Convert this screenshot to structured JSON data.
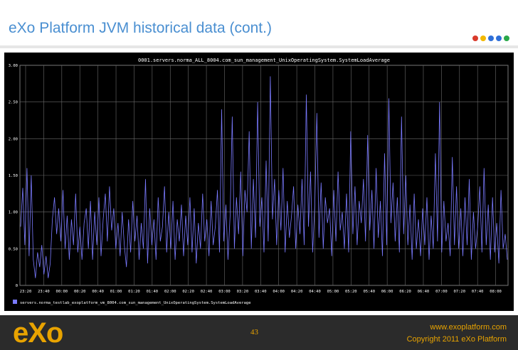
{
  "slide": {
    "title": "eXo Platform JVM historical data (cont.)",
    "dots": [
      "#d93a2b",
      "#f2b800",
      "#2f6fd8",
      "#2f6fd8",
      "#2aa84a"
    ]
  },
  "footer": {
    "logo": "eXo",
    "page_number": "43",
    "url": "www.exoplatform.com",
    "copyright": "Copyright 2011 eXo Platform"
  },
  "chart_data": {
    "type": "line",
    "title": "0001.servers.norma_ALL_8004.com_sun_management_UnixOperatingSystem.SystemLoadAverage",
    "xlabel": "",
    "ylabel": "",
    "ylim": [
      0,
      3.0
    ],
    "yticks": [
      "3.00",
      "2.50",
      "2.00",
      "1.50",
      "1.00",
      "0.50",
      "0"
    ],
    "xticks": [
      "23:20",
      "23:40",
      "00:00",
      "00:20",
      "00:40",
      "01:00",
      "01:20",
      "01:40",
      "02:00",
      "02:20",
      "02:40",
      "03:00",
      "03:20",
      "03:40",
      "04:00",
      "04:20",
      "04:40",
      "05:00",
      "05:20",
      "05:40",
      "06:00",
      "06:20",
      "06:40",
      "07:00",
      "07:20",
      "07:40",
      "08:00"
    ],
    "grid": true,
    "legend_position": "bottom-left",
    "series": [
      {
        "name": "servers.norma_testlab_exoplatform_vm_8004.com_sun_management_UnixOperatingSystem.SystemLoadAverage",
        "color": "#7a7aff",
        "values": [
          0.8,
          1.33,
          0.55,
          1.6,
          0.4,
          1.5,
          0.35,
          0.1,
          0.45,
          0.25,
          0.55,
          0.15,
          0.4,
          0.1,
          0.3,
          0.9,
          1.2,
          0.7,
          1.05,
          0.6,
          1.3,
          0.5,
          0.95,
          0.35,
          0.9,
          0.55,
          1.25,
          0.45,
          0.8,
          0.35,
          0.85,
          1.05,
          0.5,
          1.15,
          0.35,
          1.0,
          0.55,
          1.2,
          0.4,
          0.9,
          1.25,
          0.6,
          1.35,
          0.75,
          1.05,
          0.5,
          0.85,
          0.4,
          1.0,
          0.55,
          0.25,
          0.9,
          0.45,
          1.15,
          0.6,
          0.95,
          0.35,
          0.85,
          0.5,
          1.45,
          0.3,
          1.05,
          0.55,
          0.9,
          0.35,
          1.2,
          0.6,
          0.8,
          1.35,
          0.45,
          1.0,
          0.5,
          1.15,
          0.35,
          0.9,
          0.6,
          1.1,
          0.4,
          0.95,
          0.55,
          1.2,
          0.45,
          1.05,
          0.3,
          0.85,
          0.5,
          1.25,
          0.6,
          0.9,
          0.4,
          1.15,
          0.55,
          0.8,
          1.3,
          0.45,
          2.4,
          0.6,
          1.1,
          0.35,
          0.95,
          2.3,
          0.5,
          1.2,
          0.7,
          1.55,
          0.4,
          1.3,
          1.0,
          2.1,
          0.5,
          1.45,
          0.65,
          2.5,
          0.8,
          1.2,
          0.45,
          1.7,
          0.6,
          2.85,
          0.9,
          1.45,
          0.55,
          1.3,
          0.75,
          1.6,
          0.45,
          1.15,
          0.65,
          0.95,
          1.35,
          0.5,
          1.1,
          0.7,
          1.45,
          0.55,
          2.6,
          0.8,
          1.55,
          0.45,
          1.1,
          2.35,
          0.65,
          1.4,
          0.5,
          1.2,
          0.85,
          1.05,
          0.4,
          1.3,
          0.6,
          1.55,
          0.75,
          1.0,
          0.5,
          1.25,
          0.45,
          2.1,
          0.7,
          1.35,
          0.55,
          1.15,
          0.85,
          1.45,
          0.6,
          2.05,
          0.75,
          1.3,
          0.5,
          1.6,
          0.65,
          1.15,
          0.4,
          1.8,
          0.55,
          2.55,
          0.85,
          1.4,
          0.6,
          1.2,
          0.45,
          2.3,
          0.7,
          1.5,
          0.55,
          1.1,
          0.35,
          1.25,
          0.5,
          0.9,
          0.4,
          1.05,
          0.55,
          1.2,
          0.35,
          0.95,
          0.5,
          1.8,
          0.6,
          2.5,
          0.45,
          1.15,
          0.6,
          0.85,
          0.4,
          1.75,
          0.55,
          1.35,
          0.5,
          1.05,
          0.4,
          1.2,
          0.55,
          1.45,
          0.35,
          1.0,
          0.5,
          0.8,
          1.35,
          0.45,
          1.6,
          0.55,
          1.1,
          0.35,
          1.2,
          0.45,
          0.85,
          0.3,
          1.3,
          0.5,
          0.7,
          0.35
        ]
      }
    ]
  }
}
